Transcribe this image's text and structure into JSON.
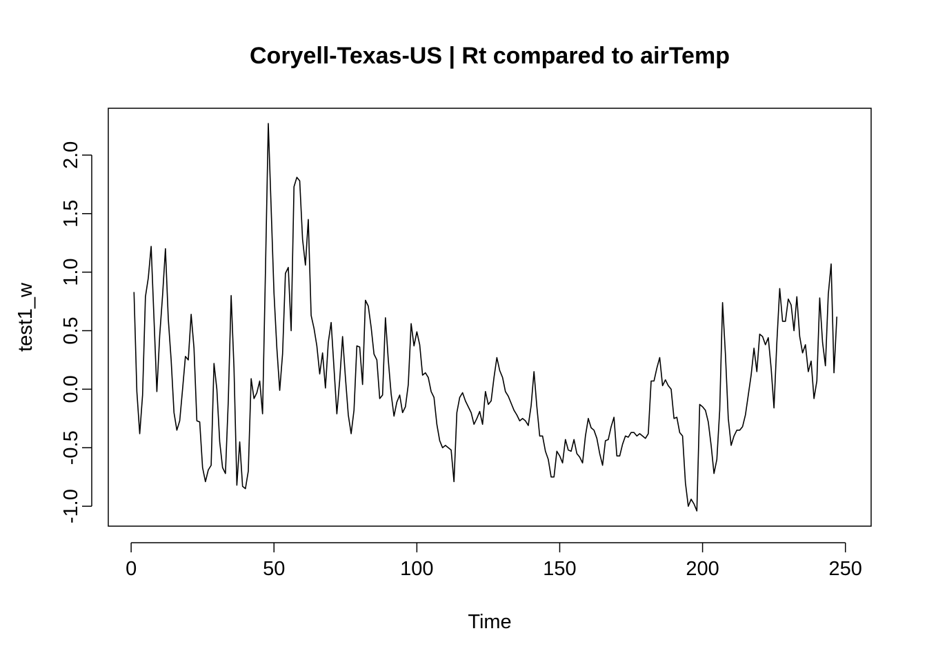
{
  "chart_data": {
    "type": "line",
    "title": "Coryell-Texas-US | Rt compared to airTemp",
    "xlabel": "Time",
    "ylabel": "test1_w",
    "xlim": [
      -8,
      259
    ],
    "ylim": [
      -1.17,
      2.4
    ],
    "xticks": [
      0,
      50,
      100,
      150,
      200,
      250
    ],
    "xtick_labels": [
      "0",
      "50",
      "100",
      "150",
      "200",
      "250"
    ],
    "yticks": [
      -1.0,
      -0.5,
      0.0,
      0.5,
      1.0,
      1.5,
      2.0
    ],
    "ytick_labels": [
      "-1.0",
      "-0.5",
      "0.0",
      "0.5",
      "1.0",
      "1.5",
      "2.0"
    ],
    "grid": false,
    "color": "#000000",
    "series": [
      {
        "x_start": 1,
        "values": [
          0.83,
          -0.02,
          -0.38,
          -0.05,
          0.79,
          0.95,
          1.22,
          0.6,
          -0.02,
          0.46,
          0.8,
          1.2,
          0.6,
          0.25,
          -0.2,
          -0.35,
          -0.27,
          0.0,
          0.28,
          0.25,
          0.64,
          0.35,
          -0.27,
          -0.28,
          -0.67,
          -0.79,
          -0.69,
          -0.65,
          0.22,
          0.0,
          -0.45,
          -0.67,
          -0.72,
          -0.1,
          0.8,
          0.18,
          -0.82,
          -0.45,
          -0.83,
          -0.85,
          -0.7,
          0.09,
          -0.08,
          -0.03,
          0.07,
          -0.21,
          1.0,
          2.27,
          1.55,
          0.82,
          0.35,
          -0.01,
          0.3,
          0.99,
          1.04,
          0.5,
          1.73,
          1.81,
          1.78,
          1.28,
          1.06,
          1.45,
          0.63,
          0.52,
          0.37,
          0.13,
          0.31,
          0.01,
          0.4,
          0.57,
          0.18,
          -0.21,
          0.08,
          0.45,
          0.1,
          -0.22,
          -0.38,
          -0.18,
          0.37,
          0.36,
          0.04,
          0.76,
          0.71,
          0.53,
          0.3,
          0.25,
          -0.08,
          -0.05,
          0.61,
          0.25,
          -0.04,
          -0.23,
          -0.11,
          -0.05,
          -0.2,
          -0.15,
          0.04,
          0.56,
          0.37,
          0.49,
          0.38,
          0.12,
          0.14,
          0.1,
          -0.02,
          -0.07,
          -0.3,
          -0.44,
          -0.5,
          -0.48,
          -0.5,
          -0.52,
          -0.79,
          -0.2,
          -0.07,
          -0.03,
          -0.1,
          -0.15,
          -0.2,
          -0.3,
          -0.25,
          -0.19,
          -0.3,
          -0.02,
          -0.13,
          -0.1,
          0.1,
          0.27,
          0.16,
          0.1,
          -0.02,
          -0.06,
          -0.12,
          -0.18,
          -0.22,
          -0.27,
          -0.25,
          -0.27,
          -0.31,
          -0.14,
          0.15,
          -0.15,
          -0.4,
          -0.4,
          -0.53,
          -0.6,
          -0.75,
          -0.75,
          -0.53,
          -0.57,
          -0.63,
          -0.43,
          -0.52,
          -0.53,
          -0.43,
          -0.55,
          -0.58,
          -0.63,
          -0.4,
          -0.25,
          -0.33,
          -0.35,
          -0.42,
          -0.55,
          -0.65,
          -0.44,
          -0.43,
          -0.32,
          -0.24,
          -0.57,
          -0.57,
          -0.47,
          -0.4,
          -0.41,
          -0.37,
          -0.37,
          -0.4,
          -0.38,
          -0.4,
          -0.42,
          -0.38,
          0.07,
          0.07,
          0.18,
          0.27,
          0.03,
          0.08,
          0.03,
          0.0,
          -0.25,
          -0.24,
          -0.37,
          -0.4,
          -0.8,
          -1.0,
          -0.94,
          -0.98,
          -1.04,
          -0.13,
          -0.15,
          -0.18,
          -0.28,
          -0.48,
          -0.72,
          -0.6,
          -0.18,
          0.74,
          0.3,
          -0.25,
          -0.48,
          -0.4,
          -0.35,
          -0.35,
          -0.32,
          -0.22,
          -0.05,
          0.12,
          0.35,
          0.15,
          0.47,
          0.45,
          0.38,
          0.44,
          0.18,
          -0.16,
          0.4,
          0.86,
          0.58,
          0.58,
          0.77,
          0.72,
          0.5,
          0.79,
          0.45,
          0.31,
          0.38,
          0.15,
          0.24,
          -0.08,
          0.07,
          0.78,
          0.4,
          0.2,
          0.81,
          1.07,
          0.14,
          0.62
        ]
      }
    ]
  }
}
